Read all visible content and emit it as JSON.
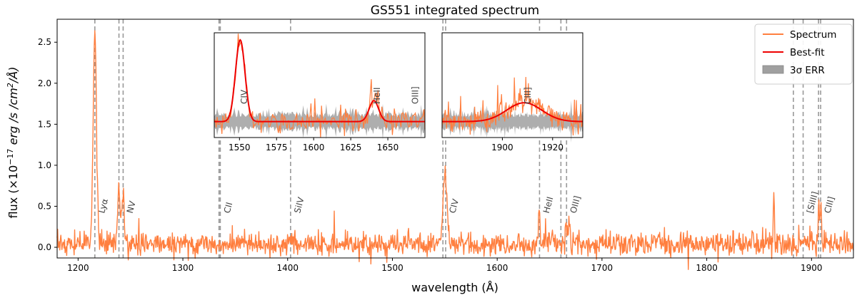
{
  "chart_data": {
    "type": "line",
    "title": "GS551 integrated spectrum",
    "xlabel": "wavelength (Å)",
    "ylabel_parts": [
      "flux (×10",
      "−17",
      " erg /s /cm",
      "2",
      "/Å)"
    ],
    "xlim": [
      1180,
      1940
    ],
    "ylim": [
      -0.13,
      2.78
    ],
    "xticks": [
      1200,
      1300,
      1400,
      1500,
      1600,
      1700,
      1800,
      1900
    ],
    "yticks": [
      0.0,
      0.5,
      1.0,
      1.5,
      2.0,
      2.5
    ],
    "spectrum": {
      "name": "Spectrum",
      "color": "#ff7f3f",
      "noise_sigma": 0.07,
      "continuum": 0.04,
      "features": [
        {
          "center": 1216,
          "amp": 2.55,
          "width": 1.6,
          "label": "Lyα"
        },
        {
          "center": 1239,
          "amp": 0.7,
          "width": 1.2
        },
        {
          "center": 1243,
          "amp": 0.62,
          "width": 1.2,
          "label": "NV"
        },
        {
          "center": 1550,
          "amp": 0.9,
          "width": 1.8,
          "label": "CIV"
        },
        {
          "center": 1640,
          "amp": 0.45,
          "width": 0.8,
          "label": "HeII"
        },
        {
          "center": 1666,
          "amp": 0.25,
          "width": 0.8
        },
        {
          "center": 1669,
          "amp": 0.3,
          "width": 0.8
        },
        {
          "center": 1864,
          "amp": 0.5,
          "width": 0.7
        },
        {
          "center": 1907,
          "amp": 0.45,
          "width": 0.7
        },
        {
          "center": 1909,
          "amp": 0.4,
          "width": 0.7
        }
      ]
    },
    "line_markers": [
      {
        "x": 1216,
        "label": "Lyα"
      },
      {
        "x": 1239,
        "label": ""
      },
      {
        "x": 1243,
        "label": "NV"
      },
      {
        "x": 1334.5,
        "label": ""
      },
      {
        "x": 1335.7,
        "label": "CII"
      },
      {
        "x": 1402.8,
        "label": "SiIV"
      },
      {
        "x": 1548.2,
        "label": ""
      },
      {
        "x": 1550.8,
        "label": "CIV"
      },
      {
        "x": 1640.4,
        "label": "HeII"
      },
      {
        "x": 1660.8,
        "label": ""
      },
      {
        "x": 1666.2,
        "label": "OIII]"
      },
      {
        "x": 1882.7,
        "label": ""
      },
      {
        "x": 1892.0,
        "label": "[SiIII]"
      },
      {
        "x": 1906.7,
        "label": ""
      },
      {
        "x": 1908.7,
        "label": "CIII]"
      }
    ],
    "legend": {
      "position": "top-right",
      "entries": [
        {
          "label": "Spectrum",
          "kind": "line",
          "color": "#ff7f3f"
        },
        {
          "label": "Best-fit",
          "kind": "line",
          "color": "#ee0000"
        },
        {
          "label": "3σ ERR",
          "kind": "patch",
          "color": "#a0a0a0"
        }
      ]
    },
    "insets": [
      {
        "xlim": [
          1533,
          1675
        ],
        "ylim": [
          0.0,
          2.5
        ],
        "xticks": [
          1550,
          1575,
          1600,
          1625,
          1650
        ],
        "gaussians": [
          {
            "center": 1550.5,
            "amp": 1.95,
            "sigma": 3.2
          },
          {
            "center": 1640.6,
            "amp": 0.5,
            "sigma": 3.2
          }
        ],
        "continuum": 0.38,
        "markers": [
          {
            "x": 1550.8,
            "label": "CIV"
          },
          {
            "x": 1640.4,
            "label": "HeII"
          },
          {
            "x": 1666.2,
            "label": "OIII]"
          }
        ]
      },
      {
        "xlim": [
          1876,
          1932
        ],
        "ylim": [
          0.0,
          2.5
        ],
        "xticks": [
          1900,
          1920
        ],
        "gaussians": [
          {
            "center": 1908.7,
            "amp": 0.45,
            "sigma": 7.0
          }
        ],
        "continuum": 0.38,
        "markers": [
          {
            "x": 1908.7,
            "label": "CIII]"
          }
        ]
      }
    ]
  }
}
